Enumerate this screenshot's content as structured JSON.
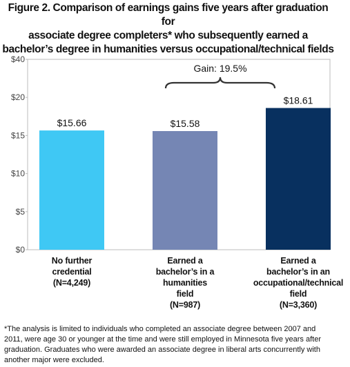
{
  "chart_data": {
    "type": "bar",
    "title": "Figure 2. Comparison of  earnings gains five years after graduation for\nassociate degree completers* who subsequently earned a\nbachelor’s degree in humanities versus occupational/technical fields",
    "categories": [
      "No further\ncredential\n(N=4,249)",
      "Earned a\nbachelor’s in a\nhumanities\nfield\n(N=987)",
      "Earned a\nbachelor’s in an\noccupational/technical\nfield\n(N=3,360)"
    ],
    "values": [
      15.66,
      15.58,
      18.61
    ],
    "value_labels": [
      "$15.66",
      "$15.58",
      "$18.61"
    ],
    "colors": [
      "#3fc8f4",
      "#7586b4",
      "#08305f"
    ],
    "ylim": [
      0,
      40
    ],
    "yticks": [
      {
        "value": 0,
        "label": "$0"
      },
      {
        "value": 5,
        "label": "$5"
      },
      {
        "value": 10,
        "label": "$10"
      },
      {
        "value": 15,
        "label": "$15"
      },
      {
        "value": 20,
        "label": "$20"
      },
      {
        "value": 40,
        "label": "$40"
      }
    ],
    "annotation": "Gain: 19.5%",
    "footnote": "*The analysis is limited to individuals who completed an associate degree between 2007 and 2011, were age 30  or younger at the time and were still employed in Minnesota five years after graduation. Graduates who were awarded an associate degree in liberal arts concurrently with another major were excluded."
  }
}
